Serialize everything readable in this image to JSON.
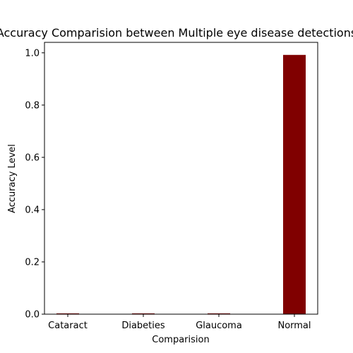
{
  "chart_data": {
    "type": "bar",
    "title": "Accuracy Comparision between Multiple eye disease detections",
    "xlabel": "Comparision",
    "ylabel": "Accuracy Level",
    "categories": [
      "Cataract",
      "Diabeties",
      "Glaucoma",
      "Normal"
    ],
    "values": [
      0.003,
      0.003,
      0.003,
      0.992
    ],
    "ylim": [
      0,
      1.04
    ],
    "yticks": [
      "0.0",
      "0.2",
      "0.4",
      "0.6",
      "0.8",
      "1.0"
    ],
    "grid": false,
    "bar_color": "#800000"
  }
}
